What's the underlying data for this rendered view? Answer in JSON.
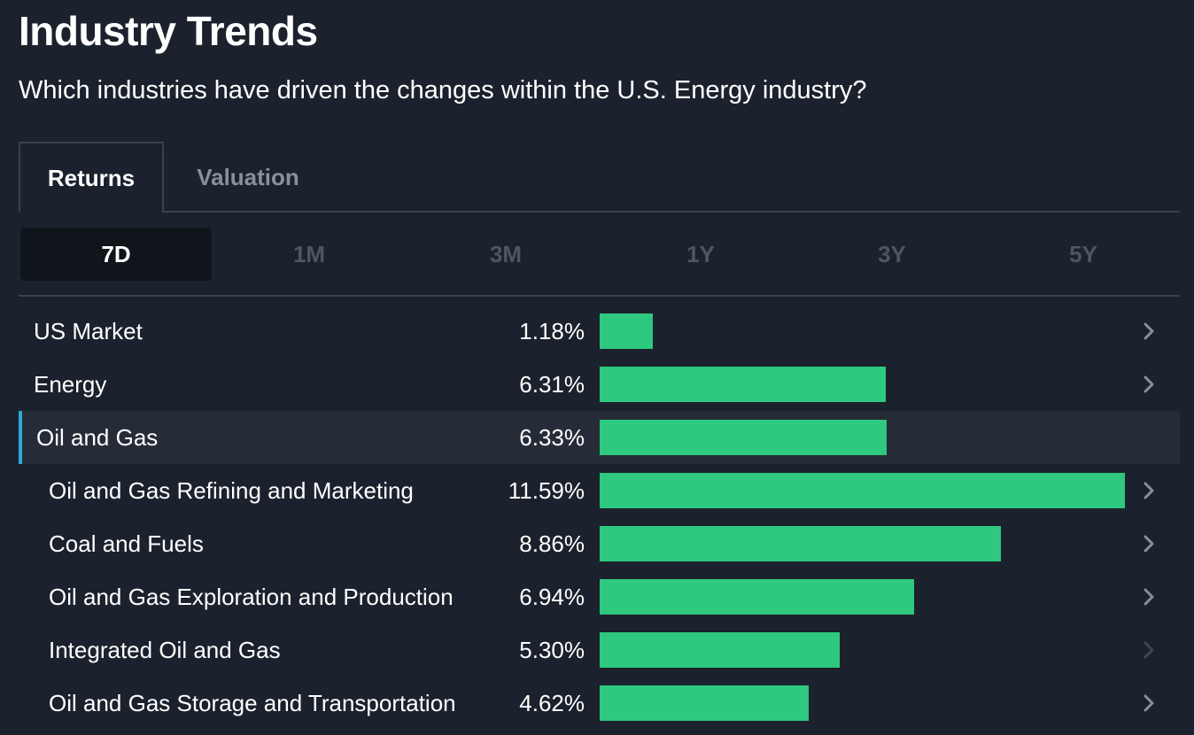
{
  "header": {
    "title": "Industry Trends",
    "subtitle": "Which industries have driven the changes within the U.S. Energy industry?"
  },
  "tabs": [
    {
      "label": "Returns",
      "active": true
    },
    {
      "label": "Valuation",
      "active": false
    }
  ],
  "periods": [
    {
      "label": "7D",
      "active": true
    },
    {
      "label": "1M",
      "active": false
    },
    {
      "label": "3M",
      "active": false
    },
    {
      "label": "1Y",
      "active": false
    },
    {
      "label": "3Y",
      "active": false
    },
    {
      "label": "5Y",
      "active": false
    }
  ],
  "colors": {
    "bar": "#2ec97e",
    "accent": "#2fa8d8",
    "background": "#1b222d"
  },
  "max_return": 11.59,
  "rows": [
    {
      "label": "US Market",
      "value": "1.18%",
      "return": 1.18,
      "level": 0,
      "selected": false,
      "chevron": "chevron-right-icon",
      "chevron_enabled": true
    },
    {
      "label": "Energy",
      "value": "6.31%",
      "return": 6.31,
      "level": 0,
      "selected": false,
      "chevron": "chevron-right-icon",
      "chevron_enabled": true
    },
    {
      "label": "Oil and Gas",
      "value": "6.33%",
      "return": 6.33,
      "level": 0,
      "selected": true,
      "chevron": "",
      "chevron_enabled": false
    },
    {
      "label": "Oil and Gas Refining and Marketing",
      "value": "11.59%",
      "return": 11.59,
      "level": 1,
      "selected": false,
      "chevron": "chevron-right-icon",
      "chevron_enabled": true
    },
    {
      "label": "Coal and Fuels",
      "value": "8.86%",
      "return": 8.86,
      "level": 1,
      "selected": false,
      "chevron": "chevron-right-icon",
      "chevron_enabled": true
    },
    {
      "label": "Oil and Gas Exploration and Production",
      "value": "6.94%",
      "return": 6.94,
      "level": 1,
      "selected": false,
      "chevron": "chevron-right-icon",
      "chevron_enabled": true
    },
    {
      "label": "Integrated Oil and Gas",
      "value": "5.30%",
      "return": 5.3,
      "level": 1,
      "selected": false,
      "chevron": "chevron-right-icon",
      "chevron_enabled": false
    },
    {
      "label": "Oil and Gas Storage and Transportation",
      "value": "4.62%",
      "return": 4.62,
      "level": 1,
      "selected": false,
      "chevron": "chevron-right-icon",
      "chevron_enabled": true
    }
  ]
}
